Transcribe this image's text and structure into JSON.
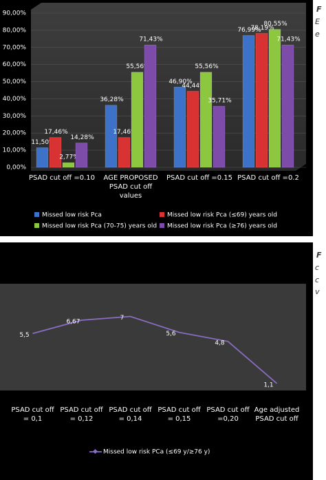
{
  "chart_data": [
    {
      "type": "bar",
      "categories": [
        "PSAD cut off =0.10",
        "AGE PROPOSED\nPSAD cut off\nvalues",
        "PSAD cut off =0.15",
        "PSAD cut off =0.2"
      ],
      "series": [
        {
          "name": "Missed low risk Pca",
          "color": "#3d72c8",
          "values": [
            11.5,
            36.28,
            46.9,
            76.99
          ],
          "value_labels": [
            "11,50%",
            "36,28%",
            "46,90%",
            "76,99%"
          ]
        },
        {
          "name": "Missed  low risk Pca (≤69) years old",
          "color": "#d83232",
          "values": [
            17.46,
            17.46,
            44.44,
            78.19
          ],
          "value_labels": [
            "17,46%",
            "17,46%",
            "44,44%",
            "78,19%"
          ]
        },
        {
          "name": "Missed low risk Pca (70-75) years old",
          "color": "#8dc63f",
          "values": [
            2.77,
            55.56,
            55.56,
            80.55
          ],
          "value_labels": [
            "2,77%",
            "55,56%",
            "55,56%",
            "80,55%"
          ]
        },
        {
          "name": "Missed  low risk Pca (≥76) years old",
          "color": "#7d4ba8",
          "values": [
            14.28,
            71.43,
            35.71,
            71.43
          ],
          "value_labels": [
            "14,28%",
            "71,43%",
            "35,71%",
            "71,43%"
          ]
        }
      ],
      "ylim": [
        0,
        90
      ],
      "yticks": [
        {
          "value": 0,
          "label": "0,00%"
        },
        {
          "value": 10,
          "label": "10,00%"
        },
        {
          "value": 20,
          "label": "20,00%"
        },
        {
          "value": 30,
          "label": "30,00%"
        },
        {
          "value": 40,
          "label": "40,00%"
        },
        {
          "value": 50,
          "label": "50,00%"
        },
        {
          "value": 60,
          "label": "60,00%"
        },
        {
          "value": 70,
          "label": "70,00%"
        },
        {
          "value": 80,
          "label": "80,00%"
        },
        {
          "value": 90,
          "label": "90,00%"
        }
      ],
      "grid": true
    },
    {
      "type": "line",
      "categories": [
        "PSAD cut off\n= 0,1",
        "PSAD cut off\n= 0,12",
        "PSAD cut off\n= 0,14",
        "PSAD cut off\n= 0,15",
        "PSAD cut off\n=0,20",
        "Age adjusted\nPSAD cut off"
      ],
      "series": [
        {
          "name": "Missed  low risk PCa  (≤69 y/≥76 y)",
          "color": "#8a6cc0",
          "values": [
            5.5,
            6.67,
            7,
            5.6,
            4.8,
            1.1
          ],
          "value_labels": [
            "5,5",
            "6,67",
            "7",
            "5,6",
            "4,8",
            "1,1"
          ]
        }
      ],
      "ylim": [
        0,
        10
      ]
    }
  ],
  "side_text": {
    "top": [
      "F",
      "E",
      "e"
    ],
    "bottom": [
      "F",
      "c",
      "c",
      "v"
    ]
  }
}
